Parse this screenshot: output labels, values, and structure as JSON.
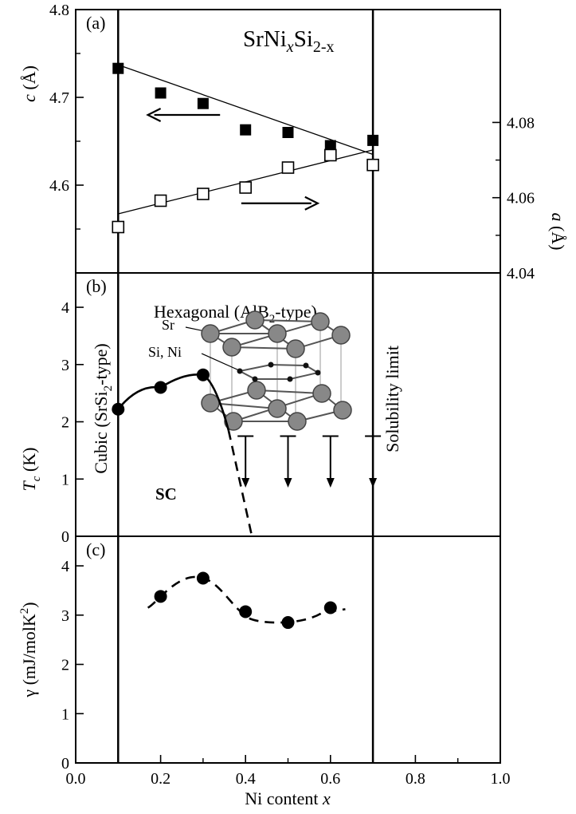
{
  "chart_data": [
    {
      "panel": "(a)",
      "type": "scatter",
      "title": "SrNi",
      "title_sub1": "x",
      "title_mid": "Si",
      "title_sub2": "2-x",
      "ylabel_left": "c (Å)",
      "ylabel_right": "a (Å)",
      "ylim_left": [
        4.5,
        4.8
      ],
      "ylim_right": [
        4.04,
        4.11
      ],
      "yticks_left": [
        "4.6",
        "4.7",
        "4.8"
      ],
      "yticks_right": [
        "4.04",
        "4.06",
        "4.08"
      ],
      "series": [
        {
          "name": "c",
          "marker": "filled-square",
          "axis": "left",
          "x": [
            0.1,
            0.2,
            0.3,
            0.4,
            0.5,
            0.6,
            0.7
          ],
          "y": [
            4.733,
            4.705,
            4.693,
            4.663,
            4.66,
            4.645,
            4.651
          ],
          "fit": [
            [
              0.1,
              4.737
            ],
            [
              0.7,
              4.635
            ]
          ]
        },
        {
          "name": "a",
          "marker": "open-square",
          "axis": "right",
          "x": [
            0.1,
            0.2,
            0.3,
            0.4,
            0.5,
            0.6,
            0.7
          ],
          "y": [
            4.0522,
            4.0592,
            4.061,
            4.0627,
            4.068,
            4.0713,
            4.0687
          ],
          "fit": [
            [
              0.1,
              4.0557
            ],
            [
              0.7,
              4.0727
            ]
          ]
        }
      ],
      "arrows": [
        {
          "direction": "left",
          "from": [
            0.34,
            4.68
          ],
          "to": [
            0.17,
            4.68
          ]
        },
        {
          "direction": "right",
          "from": [
            0.39,
            4.0585
          ],
          "to": [
            0.57,
            4.0585
          ]
        }
      ]
    },
    {
      "panel": "(b)",
      "type": "line",
      "ylabel": "T_c (K)",
      "ylabel_main": "T",
      "ylabel_sub": "c",
      "ylabel_unit": "(K)",
      "ylim": [
        0,
        4.6
      ],
      "yticks": [
        "0",
        "1",
        "2",
        "3",
        "4"
      ],
      "series": [
        {
          "name": "Tc",
          "marker": "filled-circle",
          "x": [
            0.1,
            0.2,
            0.3
          ],
          "y": [
            2.22,
            2.6,
            2.82
          ]
        }
      ],
      "upper_limits_x": [
        0.4,
        0.5,
        0.6,
        0.7
      ],
      "upper_limit_value": 1.75,
      "labels": {
        "hexagonal_pre": "Hexagonal (AlB",
        "hexagonal_sub": "2",
        "hexagonal_post": "-type)",
        "cubic_pre": "Cubic (SrSi",
        "cubic_sub": "2",
        "cubic_post": "-type)",
        "solubility": "Solubility limit",
        "sc": "SC",
        "sr": "Sr",
        "si_ni": "Si, Ni"
      }
    },
    {
      "panel": "(c)",
      "type": "scatter",
      "ylabel": "γ (mJ/molK²)",
      "ylabel_main": "γ (mJ/molK",
      "ylabel_sup": "2",
      "ylabel_close": ")",
      "ylim": [
        0,
        4.6
      ],
      "yticks": [
        "0",
        "1",
        "2",
        "3",
        "4"
      ],
      "series": [
        {
          "name": "gamma",
          "marker": "filled-circle",
          "x": [
            0.2,
            0.3,
            0.4,
            0.5,
            0.6
          ],
          "y": [
            3.38,
            3.75,
            3.07,
            2.85,
            3.15
          ]
        }
      ],
      "xlabel": "Ni content",
      "xlabel_var": "x",
      "xlim": [
        0.0,
        1.0
      ],
      "xticks": [
        "0.0",
        "0.2",
        "0.4",
        "0.6",
        "0.8",
        "1.0"
      ]
    }
  ]
}
